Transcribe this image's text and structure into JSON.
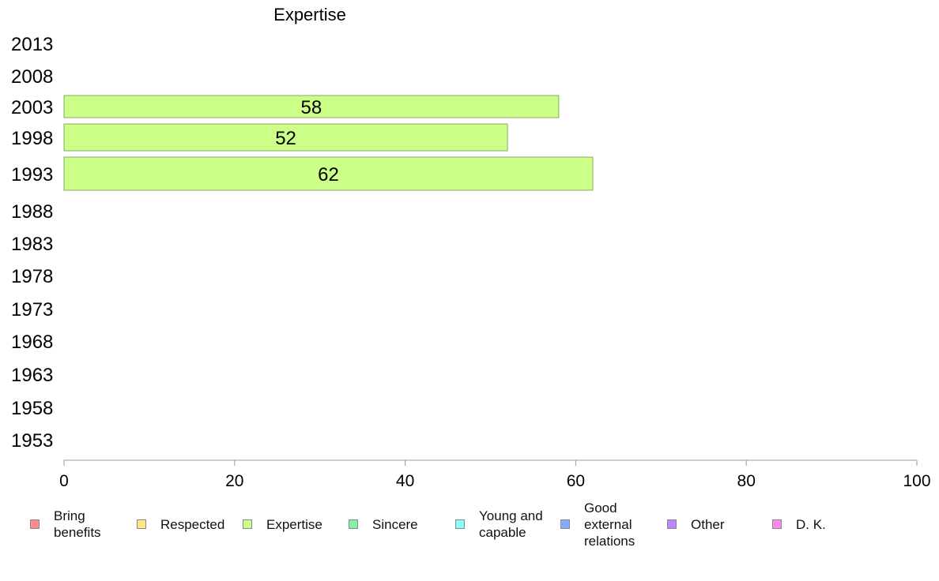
{
  "chart_data": {
    "type": "bar",
    "orientation": "horizontal",
    "title": "Expertise",
    "categories": [
      "2013",
      "2008",
      "2003",
      "1998",
      "1993",
      "1988",
      "1983",
      "1978",
      "1973",
      "1968",
      "1963",
      "1958",
      "1953"
    ],
    "series": [
      {
        "name": "Expertise",
        "color": "#ccff88",
        "values": [
          null,
          null,
          58,
          52,
          62,
          null,
          null,
          null,
          null,
          null,
          null,
          null,
          null
        ]
      }
    ],
    "xlim": [
      0,
      100
    ],
    "xticks": [
      0,
      20,
      40,
      60,
      80,
      100
    ],
    "grid": false,
    "legend_position": "bottom",
    "legend": [
      {
        "label": "Bring\nbenefits",
        "color": "#ff8888"
      },
      {
        "label": "Respected",
        "color": "#ffe888"
      },
      {
        "label": "Expertise",
        "color": "#ccff88"
      },
      {
        "label": "Sincere",
        "color": "#88f0a8"
      },
      {
        "label": "Young and\ncapable",
        "color": "#88ffff"
      },
      {
        "label": "Good\nexternal\nrelations",
        "color": "#88aaff"
      },
      {
        "label": "Other",
        "color": "#bb88ff"
      },
      {
        "label": "D. K.",
        "color": "#ff88ee"
      }
    ]
  }
}
